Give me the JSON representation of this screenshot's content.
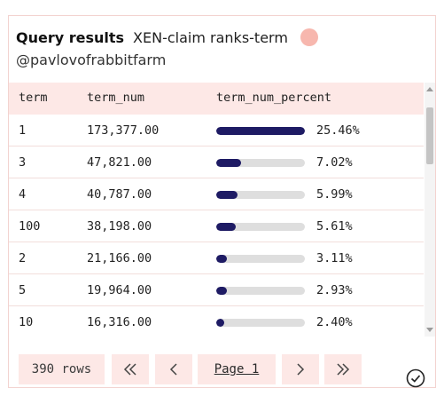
{
  "header": {
    "label": "Query results",
    "title": "XEN-claim ranks-term",
    "author": "@pavlovofrabbitfarm"
  },
  "table": {
    "columns": [
      "term",
      "term_num",
      "term_num_percent"
    ],
    "rows": [
      {
        "term": "1",
        "term_num": "173,377.00",
        "percent": 0.2546,
        "percent_label": "25.46%"
      },
      {
        "term": "3",
        "term_num": "47,821.00",
        "percent": 0.0702,
        "percent_label": "7.02%"
      },
      {
        "term": "4",
        "term_num": "40,787.00",
        "percent": 0.0599,
        "percent_label": "5.99%"
      },
      {
        "term": "100",
        "term_num": "38,198.00",
        "percent": 0.0561,
        "percent_label": "5.61%"
      },
      {
        "term": "2",
        "term_num": "21,166.00",
        "percent": 0.0311,
        "percent_label": "3.11%"
      },
      {
        "term": "5",
        "term_num": "19,964.00",
        "percent": 0.0293,
        "percent_label": "2.93%"
      },
      {
        "term": "10",
        "term_num": "16,316.00",
        "percent": 0.024,
        "percent_label": "2.40%"
      }
    ],
    "bar_max_percent": 0.2546
  },
  "pager": {
    "rows_label": "390 rows",
    "page_label": "Page 1"
  },
  "colors": {
    "accent": "#1e1b64",
    "header_bg": "#fde8e6",
    "avatar": "#f7b7ae"
  },
  "icons": {
    "first": "double-chevron-left-icon",
    "prev": "chevron-left-icon",
    "next": "chevron-right-icon",
    "last": "double-chevron-right-icon",
    "done": "check-circle-icon"
  }
}
